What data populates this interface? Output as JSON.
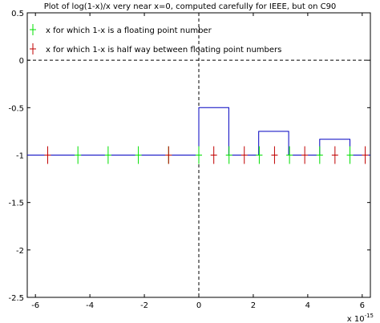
{
  "chart_data": {
    "type": "line",
    "title": "Plot of log(1-x)/x very near x=0, computed carefully for IEEE, but on C90",
    "xlabel": "",
    "ylabel": "",
    "x_multiplier_label": "x 10",
    "x_multiplier_exponent": "-15",
    "xlim": [
      -6.3,
      6.3
    ],
    "ylim": [
      -2.5,
      0.5
    ],
    "xticks": [
      -6,
      -4,
      -2,
      0,
      2,
      4,
      6
    ],
    "yticks": [
      0.5,
      0,
      -0.5,
      -1,
      -1.5,
      -2,
      -2.5
    ],
    "xtick_labels": [
      "-6",
      "-4",
      "-2",
      "0",
      "2",
      "4",
      "6"
    ],
    "ytick_labels": [
      "0.5",
      "0",
      "-0.5",
      "-1",
      "-1.5",
      "-2",
      "-2.5"
    ],
    "reference_lines": [
      {
        "orientation": "horizontal",
        "value": 0,
        "style": "dashed"
      },
      {
        "orientation": "vertical",
        "value": 0,
        "style": "dashed"
      }
    ],
    "series": [
      {
        "color": "#0000c0",
        "style": "line",
        "points": [
          [
            -6.3,
            -1
          ],
          [
            0,
            -1
          ],
          [
            0,
            -0.5
          ],
          [
            1.1,
            -0.5
          ],
          [
            1.1,
            -1
          ],
          [
            2.2,
            -1
          ],
          [
            2.2,
            -0.75
          ],
          [
            3.3,
            -0.75
          ],
          [
            3.3,
            -1
          ],
          [
            4.44,
            -1
          ],
          [
            4.44,
            -0.833
          ],
          [
            5.55,
            -0.833
          ],
          [
            5.55,
            -1
          ],
          [
            6.3,
            -1
          ]
        ]
      },
      {
        "name": "x for which 1-x is a floating point number",
        "color": "#00e000",
        "style": "marker-vertical",
        "x": [
          -4.44,
          -3.33,
          -2.22,
          -1.11,
          0,
          1.11,
          2.22,
          3.33,
          4.44,
          5.55
        ],
        "y": [
          -1,
          -1,
          -1,
          -1,
          -1,
          -1,
          -1,
          -1,
          -1,
          -1
        ]
      },
      {
        "name": "x for which 1-x is half way between floating point numbers",
        "color": "#c00000",
        "style": "marker-vertical",
        "x": [
          -5.55,
          -1.11,
          0.55,
          1.67,
          2.78,
          3.89,
          5.0,
          6.11
        ],
        "y": [
          -1,
          -1,
          -1,
          -1,
          -1,
          -1,
          -1,
          -1
        ]
      }
    ],
    "legend": {
      "placement": "top-left",
      "entries": [
        {
          "label": "x for which 1-x is a floating point number",
          "color": "#00e000"
        },
        {
          "label": "x for which 1-x is half way between floating point numbers",
          "color": "#c00000"
        }
      ]
    },
    "grid": false
  }
}
